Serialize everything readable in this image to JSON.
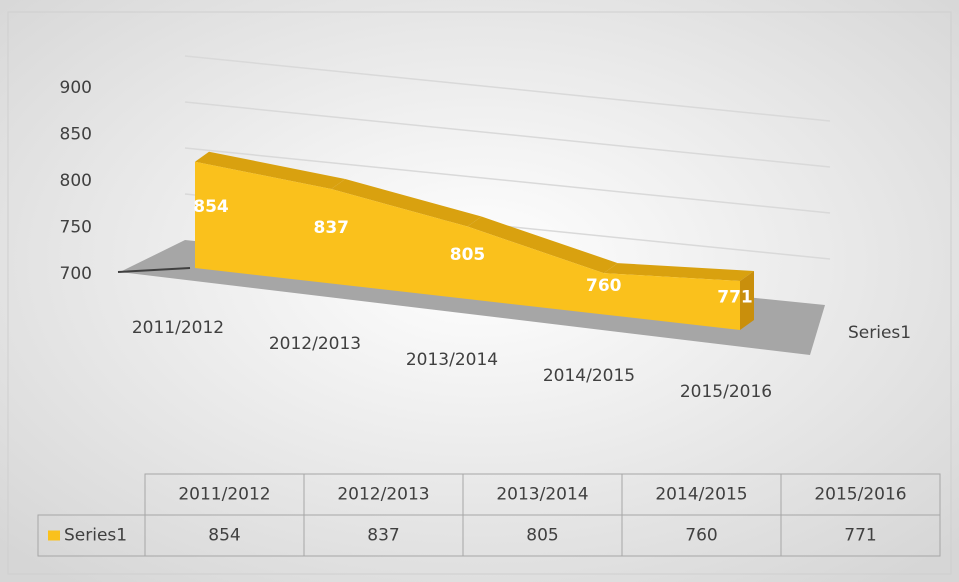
{
  "chart_data": {
    "type": "area3d",
    "categories": [
      "2011/2012",
      "2012/2013",
      "2013/2014",
      "2014/2015",
      "2015/2016"
    ],
    "series": [
      {
        "name": "Series1",
        "color": "#fac11c",
        "values": [
          854,
          837,
          805,
          760,
          771
        ]
      }
    ],
    "ylim": [
      700,
      900
    ],
    "yticks": [
      700,
      750,
      800,
      850,
      900
    ],
    "grid": true,
    "data_table": true
  }
}
